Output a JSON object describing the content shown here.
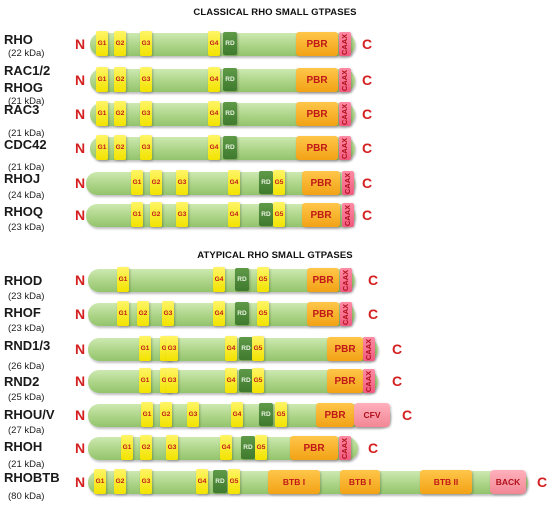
{
  "titles": {
    "classical": "CLASSICAL RHO SMALL GTPASES",
    "atypical": "ATYPICAL RHO SMALL GTPASES"
  },
  "terminals": {
    "n": "N",
    "c": "C"
  },
  "domain_labels": {
    "g1": "G1",
    "g2": "G2",
    "g3": "G3",
    "g4": "G4",
    "g5": "G5",
    "rd": "RD",
    "pbr": "PBR",
    "caax": "CAAX",
    "cfv": "CFV",
    "btb1": "BTB I",
    "btb2": "BTB II",
    "back": "BACK"
  },
  "proteins": [
    {
      "name": "RHO",
      "kda": "(22 kDa)"
    },
    {
      "name": "RAC1/2",
      "name2": "RHOG",
      "kda": "(21 kDa)"
    },
    {
      "name": "RAC3",
      "kda": "(21 kDa)"
    },
    {
      "name": "CDC42",
      "kda": "(21 kDa)"
    },
    {
      "name": "RHOJ",
      "kda": "(24 kDa)"
    },
    {
      "name": "RHOQ",
      "kda": "(23 kDa)"
    },
    {
      "name": "RHOD",
      "kda": "(23 kDa)"
    },
    {
      "name": "RHOF",
      "kda": "(23 kDa)"
    },
    {
      "name": "RND1/3",
      "kda": "(26 kDa)"
    },
    {
      "name": "RND2",
      "kda": "(25 kDa)"
    },
    {
      "name": "RHOU/V",
      "kda": "(27 kDa)"
    },
    {
      "name": "RHOH",
      "kda": "(21 kDa)"
    },
    {
      "name": "RHOBTB",
      "kda": "(80 kDa)"
    }
  ],
  "colors": {
    "bar": "#acd487",
    "g_box": "#f2e300",
    "rd_box": "#3f7a2e",
    "pbr_box": "#f2a215",
    "caax_box": "#f05a7e",
    "terminal": "#d42020"
  }
}
